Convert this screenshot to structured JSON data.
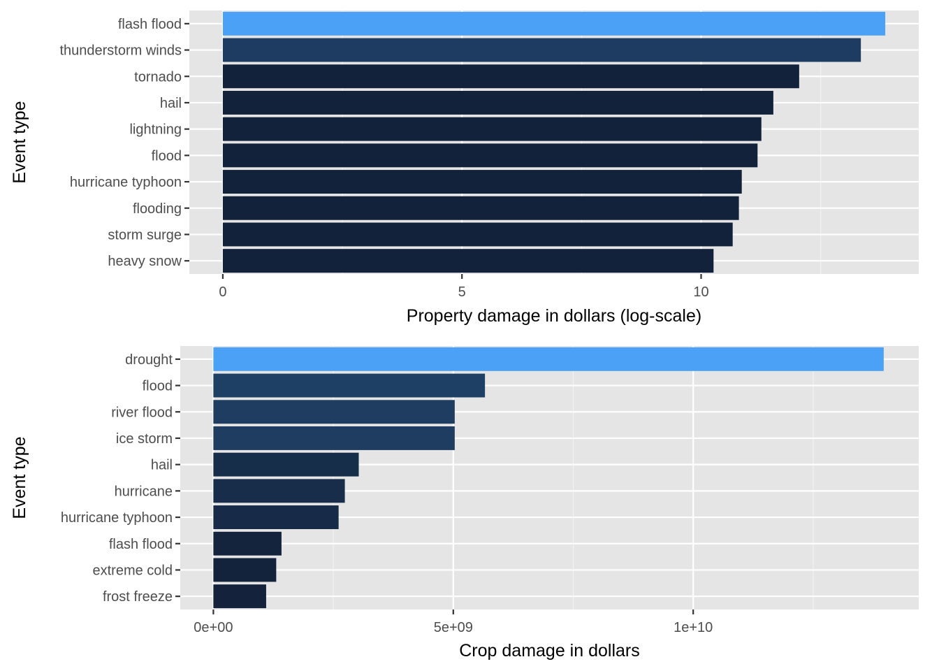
{
  "colors": {
    "panel_background": "#e5e5e5",
    "grid_major": "#ffffff",
    "grid_minor": "#f2f2f2",
    "tick_mark": "#333333",
    "fill_low": "#132b43",
    "fill_high": "#56b1f7"
  },
  "chart_data": [
    {
      "type": "bar",
      "orientation": "horizontal",
      "title": "",
      "categories": [
        "flash flood",
        "thunderstorm winds",
        "tornado",
        "hail",
        "lightning",
        "flood",
        "hurricane typhoon",
        "flooding",
        "storm surge",
        "heavy snow"
      ],
      "values": [
        13.85,
        13.34,
        12.05,
        11.51,
        11.26,
        11.18,
        10.85,
        10.79,
        10.66,
        10.26
      ],
      "fill": [
        "#4aa1f6",
        "#1e3c62",
        "#12223a",
        "#12223a",
        "#12223a",
        "#12223a",
        "#12223a",
        "#12223a",
        "#12223a",
        "#12223a"
      ],
      "xlabel": "Property damage in dollars (log-scale)",
      "ylabel": "Event type",
      "xlim": [
        -0.7,
        14.55
      ],
      "xticks": [
        0,
        5,
        10
      ],
      "xtick_labels": [
        "0",
        "5",
        "10"
      ],
      "xminor": [
        2.5,
        7.5,
        12.5
      ],
      "grid": true,
      "legend": "none"
    },
    {
      "type": "bar",
      "orientation": "horizontal",
      "title": "",
      "categories": [
        "drought",
        "flood",
        "river flood",
        "ice storm",
        "hail",
        "hurricane",
        "hurricane typhoon",
        "flash flood",
        "extreme cold",
        "frost freeze"
      ],
      "values": [
        13970000000,
        5660000000,
        5030000000,
        5030000000,
        3030000000,
        2740000000,
        2610000000,
        1420000000,
        1310000000,
        1100000000
      ],
      "fill": [
        "#4aa1f6",
        "#1f4065",
        "#1f3c61",
        "#1f3c61",
        "#172e4b",
        "#172d49",
        "#172b48",
        "#15243d",
        "#14233c",
        "#14233b"
      ],
      "xlabel": "Crop damage in dollars",
      "ylabel": "Event type",
      "xlim": [
        -690000000,
        14700000000
      ],
      "xticks": [
        0,
        5000000000,
        10000000000
      ],
      "xtick_labels": [
        "0e+00",
        "5e+09",
        "1e+10"
      ],
      "xminor": [
        2500000000,
        7500000000,
        12500000000
      ],
      "grid": true,
      "legend": "none"
    }
  ]
}
